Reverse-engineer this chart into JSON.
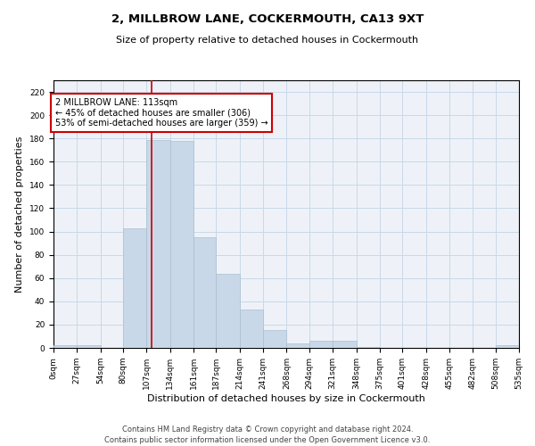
{
  "title1": "2, MILLBROW LANE, COCKERMOUTH, CA13 9XT",
  "title2": "Size of property relative to detached houses in Cockermouth",
  "xlabel": "Distribution of detached houses by size in Cockermouth",
  "ylabel": "Number of detached properties",
  "footnote1": "Contains HM Land Registry data © Crown copyright and database right 2024.",
  "footnote2": "Contains public sector information licensed under the Open Government Licence v3.0.",
  "annotation_line1": "2 MILLBROW LANE: 113sqm",
  "annotation_line2": "← 45% of detached houses are smaller (306)",
  "annotation_line3": "53% of semi-detached houses are larger (359) →",
  "property_size": 113,
  "bin_edges": [
    0,
    27,
    54,
    80,
    107,
    134,
    161,
    187,
    214,
    241,
    268,
    294,
    321,
    348,
    375,
    401,
    428,
    455,
    482,
    508,
    535
  ],
  "bin_counts": [
    2,
    2,
    0,
    103,
    179,
    178,
    95,
    64,
    33,
    15,
    4,
    6,
    6,
    1,
    0,
    0,
    0,
    0,
    0,
    2
  ],
  "bar_color": "#c8d8e8",
  "bar_edge_color": "#a8bfcf",
  "vline_color": "#cc0000",
  "annotation_box_edge": "#cc0000",
  "grid_color": "#c8d8e8",
  "background_color": "#eef2f8",
  "ylim": [
    0,
    230
  ],
  "yticks": [
    0,
    20,
    40,
    60,
    80,
    100,
    120,
    140,
    160,
    180,
    200,
    220
  ],
  "title1_fontsize": 9.5,
  "title2_fontsize": 8,
  "ylabel_fontsize": 8,
  "xlabel_fontsize": 8,
  "tick_fontsize": 6.5,
  "footnote_fontsize": 6
}
